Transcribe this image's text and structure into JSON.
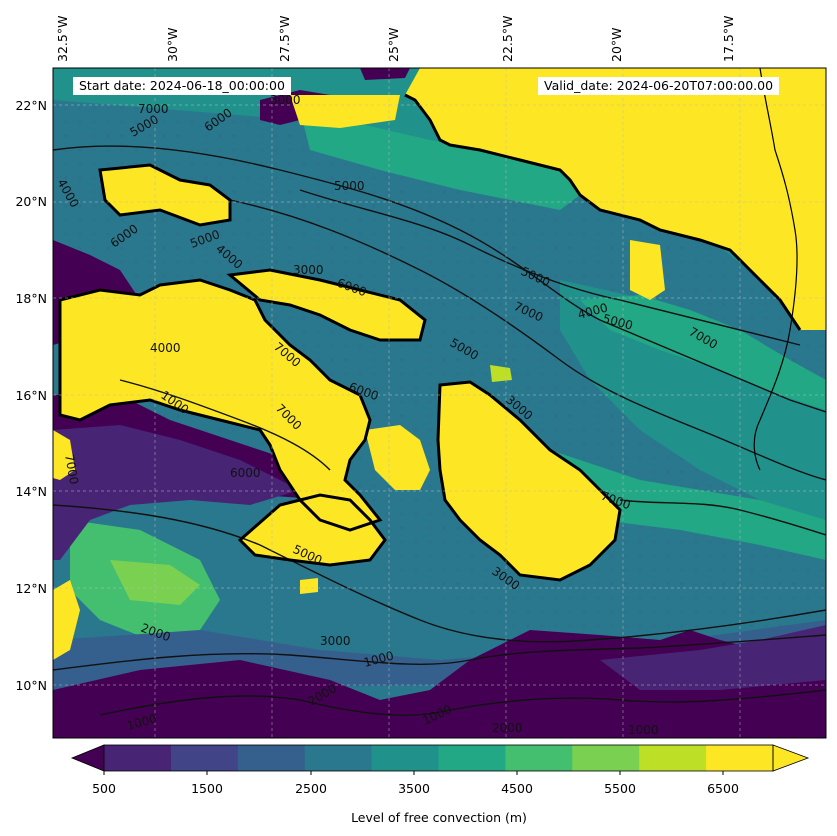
{
  "map": {
    "start_date": "Start date: 2024-06-18_00:00:00",
    "valid_date": "Valid_date: 2024-06-20T07:00:00.00",
    "top_labels": [
      "32.5°W",
      "30°W",
      "27.5°W",
      "25°W",
      "22.5°W",
      "20°W",
      "17.5°W"
    ],
    "left_labels": [
      "22°N",
      "20°N",
      "18°N",
      "16°N",
      "14°N",
      "12°N",
      "10°N"
    ],
    "contour_labels": [
      "7000",
      "5000",
      "3000",
      "6000",
      "4000",
      "6000",
      "5000",
      "5000",
      "4000",
      "3000",
      "6000",
      "5000",
      "7000",
      "4000",
      "5000",
      "7000",
      "4000",
      "5000",
      "7000",
      "6000",
      "1000",
      "7000",
      "3000",
      "7000",
      "6000",
      "7000",
      "5000",
      "3000",
      "2000",
      "3000",
      "1000",
      "2000",
      "1000",
      "2000",
      "1000",
      "1000"
    ],
    "colormap": "viridis"
  },
  "colorbar": {
    "label": "Level of free convection (m)",
    "tick_labels": [
      "500",
      "1500",
      "2500",
      "3500",
      "4500",
      "5500",
      "6500"
    ],
    "colors": [
      "#440154",
      "#482475",
      "#414487",
      "#355f8d",
      "#2a788e",
      "#21918c",
      "#22a884",
      "#44bf70",
      "#7ad151",
      "#bddf26",
      "#fde725"
    ]
  }
}
